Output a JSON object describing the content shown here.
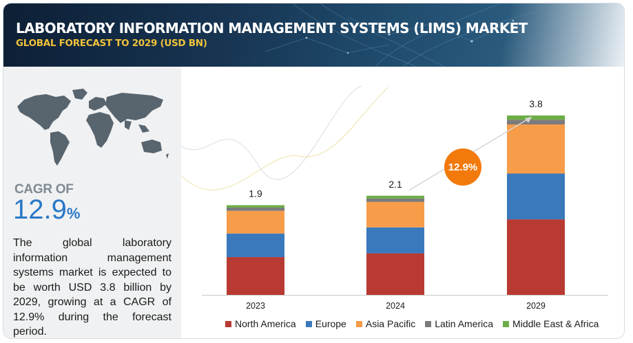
{
  "header": {
    "title": "LABORATORY INFORMATION MANAGEMENT SYSTEMS (LIMS) MARKET",
    "subtitle": "GLOBAL FORECAST TO 2029 (USD BN)"
  },
  "left_panel": {
    "cagr_label": "CAGR OF",
    "cagr_number": "12.9",
    "cagr_unit": "%",
    "summary": "The global laboratory information management systems market is expected to be worth USD 3.8 billion by 2029, growing at a CAGR of 12.9% during the forecast period."
  },
  "chart_data": {
    "type": "bar",
    "stacked": true,
    "categories": [
      "2023",
      "2024",
      "2029"
    ],
    "totals": [
      "1.9",
      "2.1",
      "3.8"
    ],
    "series": [
      {
        "name": "North America",
        "color": "#b83a32",
        "values": [
          0.8,
          0.88,
          1.6
        ]
      },
      {
        "name": "Europe",
        "color": "#3b79bd",
        "values": [
          0.5,
          0.55,
          0.97
        ]
      },
      {
        "name": "Asia Pacific",
        "color": "#f79c49",
        "values": [
          0.48,
          0.54,
          1.04
        ]
      },
      {
        "name": "Latin America",
        "color": "#7b7b7b",
        "values": [
          0.07,
          0.07,
          0.1
        ]
      },
      {
        "name": "Middle East & Africa",
        "color": "#6cad46",
        "values": [
          0.05,
          0.06,
          0.09
        ]
      }
    ],
    "ylim": [
      0,
      3.8
    ],
    "grid": false,
    "legend": "bottom",
    "annotation": {
      "text": "12.9%",
      "color": "#f27a0c"
    }
  }
}
